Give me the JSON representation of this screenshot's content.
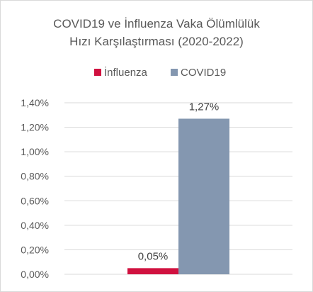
{
  "chart_data": {
    "type": "bar",
    "title_lines": [
      "COVID19 ve İnfluenza Vaka Ölümlülük",
      "Hızı Karşılaştırması (2020-2022)"
    ],
    "xlabel": "",
    "ylabel": "",
    "categories": [
      ""
    ],
    "series": [
      {
        "name": "İnfluenza",
        "values": [
          0.05
        ],
        "labels": [
          "0,05%"
        ],
        "color": "#d0113f"
      },
      {
        "name": "COVID19",
        "values": [
          1.27
        ],
        "labels": [
          "1,27%"
        ],
        "color": "#8497b0"
      }
    ],
    "ylim": [
      0,
      1.4
    ],
    "yticks": [
      0,
      0.2,
      0.4,
      0.6,
      0.8,
      1.0,
      1.2,
      1.4
    ],
    "ytick_labels": [
      "0,00%",
      "0,20%",
      "0,40%",
      "0,60%",
      "0,80%",
      "1,00%",
      "1,20%",
      "1,40%"
    ],
    "grid": true,
    "grid_color": "#d9d9d9",
    "legend_position": "top"
  }
}
